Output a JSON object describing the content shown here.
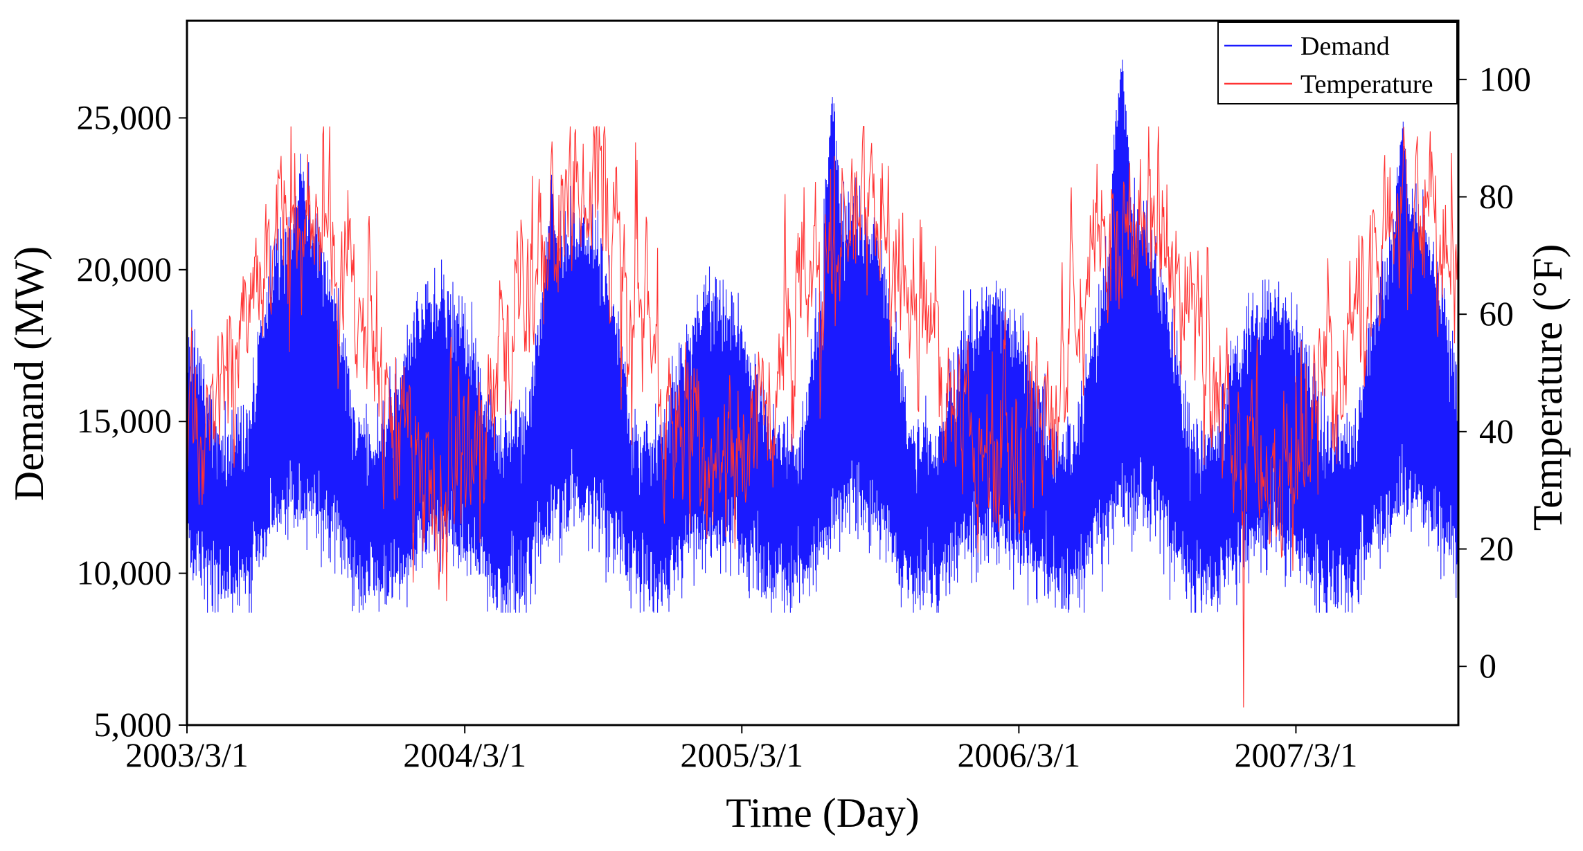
{
  "chart_data": {
    "type": "line",
    "title": "",
    "xlabel": "Time (Day)",
    "ylabel": "Demand (MW)",
    "y2label": "Temperature (°F)",
    "x_tick_labels": [
      "2003/3/1",
      "2004/3/1",
      "2005/3/1",
      "2006/3/1",
      "2007/3/1"
    ],
    "xlim_days": [
      0,
      1675
    ],
    "x_tick_days": [
      0,
      366,
      731,
      1096,
      1461
    ],
    "ylim": [
      5000,
      28200
    ],
    "y_ticks": [
      5000,
      10000,
      15000,
      20000,
      25000
    ],
    "y_tick_labels": [
      "5,000",
      "10,000",
      "15,000",
      "20,000",
      "25,000"
    ],
    "y2lim": [
      -10,
      110
    ],
    "y2_ticks": [
      0,
      20,
      40,
      60,
      80,
      100
    ],
    "y2_tick_labels": [
      "0",
      "20",
      "40",
      "60",
      "80",
      "100"
    ],
    "legend_position": "top-right",
    "series": [
      {
        "name": "Demand",
        "axis": "left",
        "color": "#1a1aff",
        "description": "Hourly-resolution daily demand, seasonal cycle with summer and winter peaks",
        "seasonal_base_mw": 13500,
        "summer_peak_mw": 25500,
        "winter_peak_mw": 21000,
        "trough_mw": 9500,
        "annual_peaks": [
          {
            "day": 150,
            "value": 24500
          },
          {
            "day": 480,
            "value": 23500
          },
          {
            "day": 850,
            "value": 26200
          },
          {
            "day": 1230,
            "value": 27600
          },
          {
            "day": 1600,
            "value": 25600
          }
        ]
      },
      {
        "name": "Temperature",
        "axis": "right",
        "color": "#ff3333",
        "description": "Daily temperature, seasonal sinusoid with high day-to-day variability",
        "annual_mean_f": 55,
        "seasonal_amplitude_f": 22,
        "min_f": -7,
        "max_f": 92
      }
    ]
  }
}
